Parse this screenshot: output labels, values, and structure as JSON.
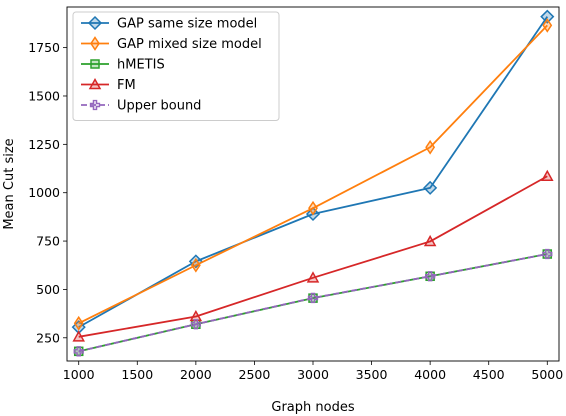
{
  "chart_data": {
    "type": "line",
    "title": "",
    "xlabel": "Graph nodes",
    "ylabel": "Mean Cut size",
    "xlim": [
      900,
      5100
    ],
    "ylim": [
      130,
      1960
    ],
    "xticks": [
      1000,
      1500,
      2000,
      2500,
      3000,
      3500,
      4000,
      4500,
      5000
    ],
    "yticks": [
      250,
      500,
      750,
      1000,
      1250,
      1500,
      1750
    ],
    "x": [
      1000,
      2000,
      3000,
      4000,
      5000
    ],
    "grid": false,
    "legend_position": "top-left",
    "series": [
      {
        "name": "GAP same size model",
        "color": "#1f77b4",
        "marker": "diamond",
        "dashed": false,
        "values": [
          305,
          645,
          890,
          1025,
          1910
        ]
      },
      {
        "name": "GAP mixed size model",
        "color": "#ff7f0e",
        "marker": "thin-diamond",
        "dashed": false,
        "values": [
          325,
          625,
          920,
          1235,
          1865
        ]
      },
      {
        "name": "hMETIS",
        "color": "#2ca02c",
        "marker": "square",
        "dashed": false,
        "values": [
          180,
          320,
          455,
          568,
          683
        ]
      },
      {
        "name": "FM",
        "color": "#d62728",
        "marker": "triangle",
        "dashed": false,
        "values": [
          255,
          360,
          560,
          748,
          1085
        ]
      },
      {
        "name": "Upper bound",
        "color": "#9467bd",
        "marker": "plus",
        "dashed": true,
        "values": [
          180,
          320,
          456,
          568,
          683
        ]
      }
    ]
  }
}
